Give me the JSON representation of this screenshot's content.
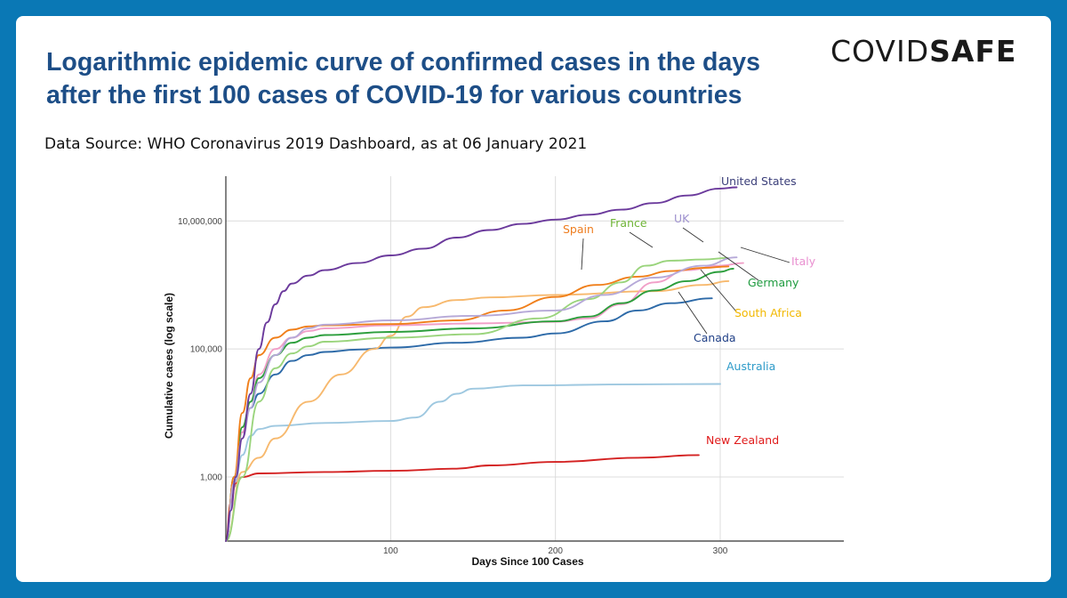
{
  "header": {
    "title": "Logarithmic epidemic curve of confirmed cases in the days after the first 100 cases of COVID-19 for various countries",
    "source": "Data Source: WHO Coronavirus 2019 Dashboard, as at 06 January 2021"
  },
  "logo": {
    "text_light": "COVID",
    "text_bold": "SAFE"
  },
  "chart_data": {
    "type": "line",
    "title": "Logarithmic epidemic curve of confirmed cases in the days after the first 100 cases of COVID-19 for various countries",
    "xlabel": "Days Since 100 Cases",
    "ylabel": "Cumulative cases (log scale)",
    "yscale": "log",
    "xlim": [
      0,
      375
    ],
    "ylim": [
      100,
      50000000
    ],
    "x_ticks": [
      100,
      200,
      300
    ],
    "x_tick_labels": [
      "100",
      "200",
      "300"
    ],
    "y_ticks": [
      1000,
      100000,
      10000000
    ],
    "y_tick_labels": [
      "1,000",
      "100,000",
      "10,000,000"
    ],
    "grid": true,
    "series": [
      {
        "name": "Australia",
        "label": "Australia",
        "color": "#9ec8e0",
        "label_color": "#2e9bc9",
        "points": [
          [
            0,
            100
          ],
          [
            5,
            700
          ],
          [
            10,
            2200
          ],
          [
            15,
            4400
          ],
          [
            20,
            5600
          ],
          [
            30,
            6300
          ],
          [
            60,
            7000
          ],
          [
            100,
            7500
          ],
          [
            115,
            8500
          ],
          [
            130,
            15000
          ],
          [
            140,
            20000
          ],
          [
            150,
            24000
          ],
          [
            180,
            27000
          ],
          [
            250,
            28000
          ],
          [
            300,
            28400
          ]
        ]
      },
      {
        "name": "New Zealand",
        "label": "New Zealand",
        "color": "#d42222",
        "label_color": "#e01b1b",
        "points": [
          [
            0,
            100
          ],
          [
            3,
            400
          ],
          [
            6,
            800
          ],
          [
            10,
            1000
          ],
          [
            20,
            1140
          ],
          [
            60,
            1200
          ],
          [
            100,
            1250
          ],
          [
            140,
            1350
          ],
          [
            160,
            1520
          ],
          [
            200,
            1720
          ],
          [
            250,
            2000
          ],
          [
            287,
            2200
          ]
        ]
      },
      {
        "name": "Canada",
        "label": "Canada",
        "color": "#2d6aa8",
        "label_color": "#1f3f86",
        "points": [
          [
            0,
            100
          ],
          [
            5,
            1000
          ],
          [
            10,
            5000
          ],
          [
            15,
            12000
          ],
          [
            20,
            20000
          ],
          [
            30,
            40000
          ],
          [
            40,
            65000
          ],
          [
            50,
            80000
          ],
          [
            60,
            90000
          ],
          [
            80,
            98000
          ],
          [
            100,
            105000
          ],
          [
            140,
            125000
          ],
          [
            180,
            150000
          ],
          [
            200,
            175000
          ],
          [
            230,
            270000
          ],
          [
            250,
            400000
          ],
          [
            270,
            520000
          ],
          [
            295,
            620000
          ]
        ]
      },
      {
        "name": "South Africa",
        "label": "South Africa",
        "color": "#f7b96e",
        "label_color": "#f2b800",
        "points": [
          [
            0,
            100
          ],
          [
            10,
            1200
          ],
          [
            20,
            2000
          ],
          [
            30,
            4000
          ],
          [
            50,
            15000
          ],
          [
            70,
            40000
          ],
          [
            90,
            100000
          ],
          [
            100,
            160000
          ],
          [
            110,
            320000
          ],
          [
            120,
            450000
          ],
          [
            140,
            580000
          ],
          [
            160,
            640000
          ],
          [
            200,
            700000
          ],
          [
            260,
            800000
          ],
          [
            290,
            1000000
          ],
          [
            305,
            1150000
          ]
        ]
      },
      {
        "name": "Italy",
        "label": "Italy",
        "color": "#f19fc8",
        "label_color": "#e98fd0",
        "points": [
          [
            0,
            100
          ],
          [
            5,
            1000
          ],
          [
            10,
            5000
          ],
          [
            15,
            15000
          ],
          [
            20,
            40000
          ],
          [
            30,
            100000
          ],
          [
            40,
            150000
          ],
          [
            50,
            190000
          ],
          [
            60,
            210000
          ],
          [
            100,
            235000
          ],
          [
            150,
            250000
          ],
          [
            200,
            265000
          ],
          [
            220,
            300000
          ],
          [
            240,
            500000
          ],
          [
            260,
            1100000
          ],
          [
            280,
            1700000
          ],
          [
            300,
            2000000
          ],
          [
            314,
            2200000
          ]
        ]
      },
      {
        "name": "Germany",
        "label": "Germany",
        "color": "#2c9e3c",
        "label_color": "#1e9b3f",
        "points": [
          [
            0,
            100
          ],
          [
            5,
            1000
          ],
          [
            10,
            6000
          ],
          [
            15,
            15000
          ],
          [
            20,
            35000
          ],
          [
            30,
            80000
          ],
          [
            40,
            125000
          ],
          [
            50,
            150000
          ],
          [
            60,
            165000
          ],
          [
            100,
            185000
          ],
          [
            150,
            210000
          ],
          [
            200,
            270000
          ],
          [
            220,
            320000
          ],
          [
            240,
            520000
          ],
          [
            260,
            820000
          ],
          [
            280,
            1150000
          ],
          [
            300,
            1600000
          ],
          [
            308,
            1800000
          ]
        ]
      },
      {
        "name": "Spain",
        "label": "Spain",
        "color": "#f07f1a",
        "label_color": "#ee7d1f",
        "points": [
          [
            0,
            100
          ],
          [
            5,
            1000
          ],
          [
            10,
            10000
          ],
          [
            15,
            35000
          ],
          [
            20,
            80000
          ],
          [
            30,
            150000
          ],
          [
            40,
            200000
          ],
          [
            50,
            225000
          ],
          [
            60,
            235000
          ],
          [
            100,
            245000
          ],
          [
            140,
            280000
          ],
          [
            170,
            400000
          ],
          [
            200,
            650000
          ],
          [
            225,
            1000000
          ],
          [
            250,
            1350000
          ],
          [
            270,
            1650000
          ],
          [
            290,
            1850000
          ],
          [
            305,
            1950000
          ]
        ]
      },
      {
        "name": "France",
        "label": "France",
        "color": "#9ad47c",
        "label_color": "#6fb436",
        "points": [
          [
            0,
            100
          ],
          [
            10,
            1000
          ],
          [
            20,
            15000
          ],
          [
            30,
            50000
          ],
          [
            40,
            85000
          ],
          [
            50,
            110000
          ],
          [
            60,
            130000
          ],
          [
            100,
            150000
          ],
          [
            150,
            170000
          ],
          [
            190,
            300000
          ],
          [
            220,
            600000
          ],
          [
            240,
            1100000
          ],
          [
            255,
            2000000
          ],
          [
            270,
            2400000
          ],
          [
            290,
            2500000
          ],
          [
            305,
            2650000
          ]
        ]
      },
      {
        "name": "UK",
        "label": "UK",
        "color": "#b6a9d8",
        "label_color": "#9e91cf",
        "points": [
          [
            0,
            100
          ],
          [
            5,
            800
          ],
          [
            10,
            4000
          ],
          [
            15,
            12000
          ],
          [
            20,
            30000
          ],
          [
            30,
            80000
          ],
          [
            40,
            150000
          ],
          [
            50,
            210000
          ],
          [
            60,
            240000
          ],
          [
            100,
            280000
          ],
          [
            150,
            330000
          ],
          [
            200,
            400000
          ],
          [
            230,
            700000
          ],
          [
            260,
            1300000
          ],
          [
            290,
            2000000
          ],
          [
            310,
            2700000
          ]
        ]
      },
      {
        "name": "United States",
        "label": "United States",
        "color": "#6b3a9c",
        "label_color": "#3b3f7a",
        "points": [
          [
            0,
            100
          ],
          [
            3,
            300
          ],
          [
            6,
            1000
          ],
          [
            10,
            4000
          ],
          [
            15,
            20000
          ],
          [
            20,
            100000
          ],
          [
            25,
            260000
          ],
          [
            30,
            500000
          ],
          [
            35,
            800000
          ],
          [
            40,
            1050000
          ],
          [
            50,
            1400000
          ],
          [
            60,
            1700000
          ],
          [
            80,
            2200000
          ],
          [
            100,
            2900000
          ],
          [
            120,
            3700000
          ],
          [
            140,
            5500000
          ],
          [
            160,
            7200000
          ],
          [
            180,
            9000000
          ],
          [
            200,
            10500000
          ],
          [
            220,
            12500000
          ],
          [
            240,
            15000000
          ],
          [
            260,
            19000000
          ],
          [
            280,
            25000000
          ],
          [
            300,
            32000000
          ],
          [
            310,
            33500000
          ]
        ]
      }
    ],
    "annotations": [
      {
        "text": "United States",
        "series": "United States"
      },
      {
        "text": "Spain",
        "series": "Spain"
      },
      {
        "text": "France",
        "series": "France"
      },
      {
        "text": "UK",
        "series": "UK"
      },
      {
        "text": "Italy",
        "series": "Italy"
      },
      {
        "text": "Germany",
        "series": "Germany"
      },
      {
        "text": "South Africa",
        "series": "South Africa"
      },
      {
        "text": "Canada",
        "series": "Canada"
      },
      {
        "text": "Australia",
        "series": "Australia"
      },
      {
        "text": "New Zealand",
        "series": "New Zealand"
      }
    ]
  }
}
